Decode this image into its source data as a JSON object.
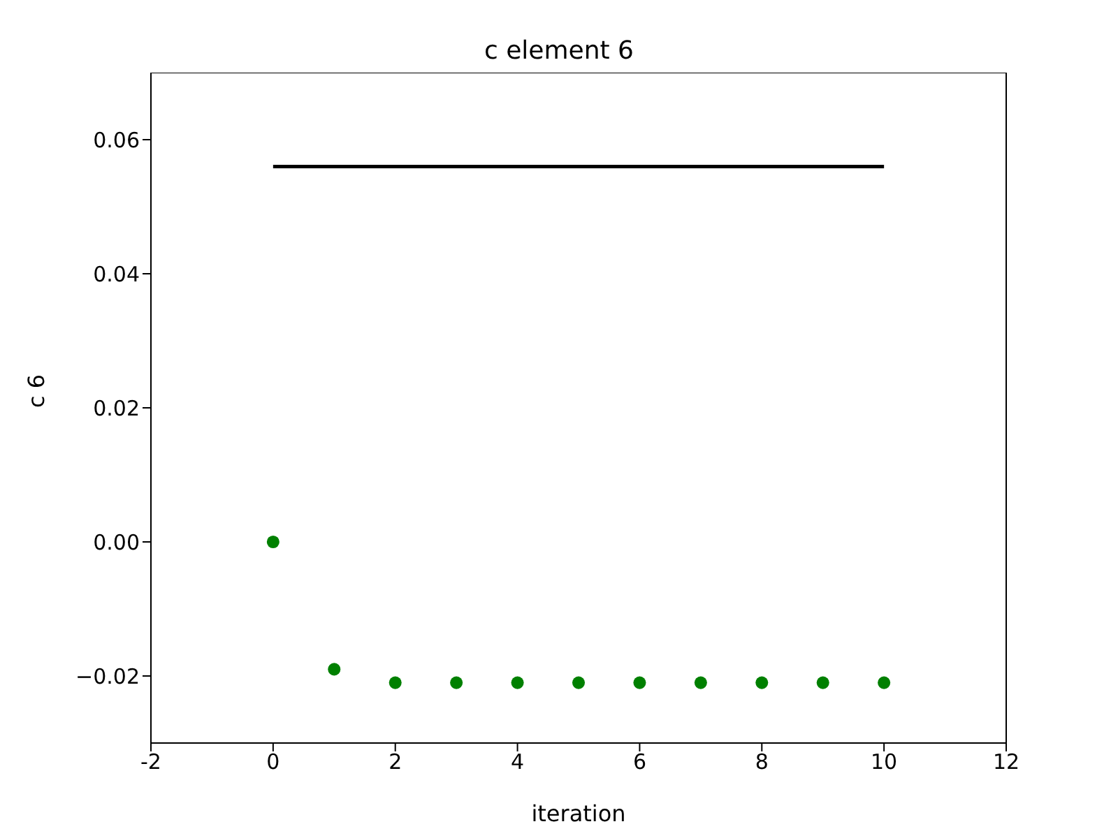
{
  "chart_data": {
    "type": "scatter",
    "title": "c element 6",
    "xlabel": "iteration",
    "ylabel": "c 6",
    "xlim": [
      -2,
      12
    ],
    "xticks": [
      -2,
      0,
      2,
      4,
      6,
      8,
      10,
      12
    ],
    "ylim": [
      -0.03,
      0.07
    ],
    "yticks": [
      {
        "value": -0.02,
        "label": "−0.02"
      },
      {
        "value": 0,
        "label": "0.00"
      },
      {
        "value": 0.02,
        "label": "0.02"
      },
      {
        "value": 0.04,
        "label": "0.04"
      },
      {
        "value": 0.06,
        "label": "0.06"
      }
    ],
    "series": [
      {
        "type": "line",
        "x": [
          0,
          10
        ],
        "values": [
          0.056,
          0.056
        ],
        "color": "#000000",
        "marker": "none",
        "line_style": "solid"
      },
      {
        "x": [
          0,
          1,
          2,
          3,
          4,
          5,
          6,
          7,
          8,
          9,
          10
        ],
        "values": [
          0,
          -0.019,
          -0.021,
          -0.021,
          -0.021,
          -0.021,
          -0.021,
          -0.021,
          -0.021,
          -0.021,
          -0.021
        ],
        "color": "#008000",
        "marker": "circle"
      }
    ]
  }
}
